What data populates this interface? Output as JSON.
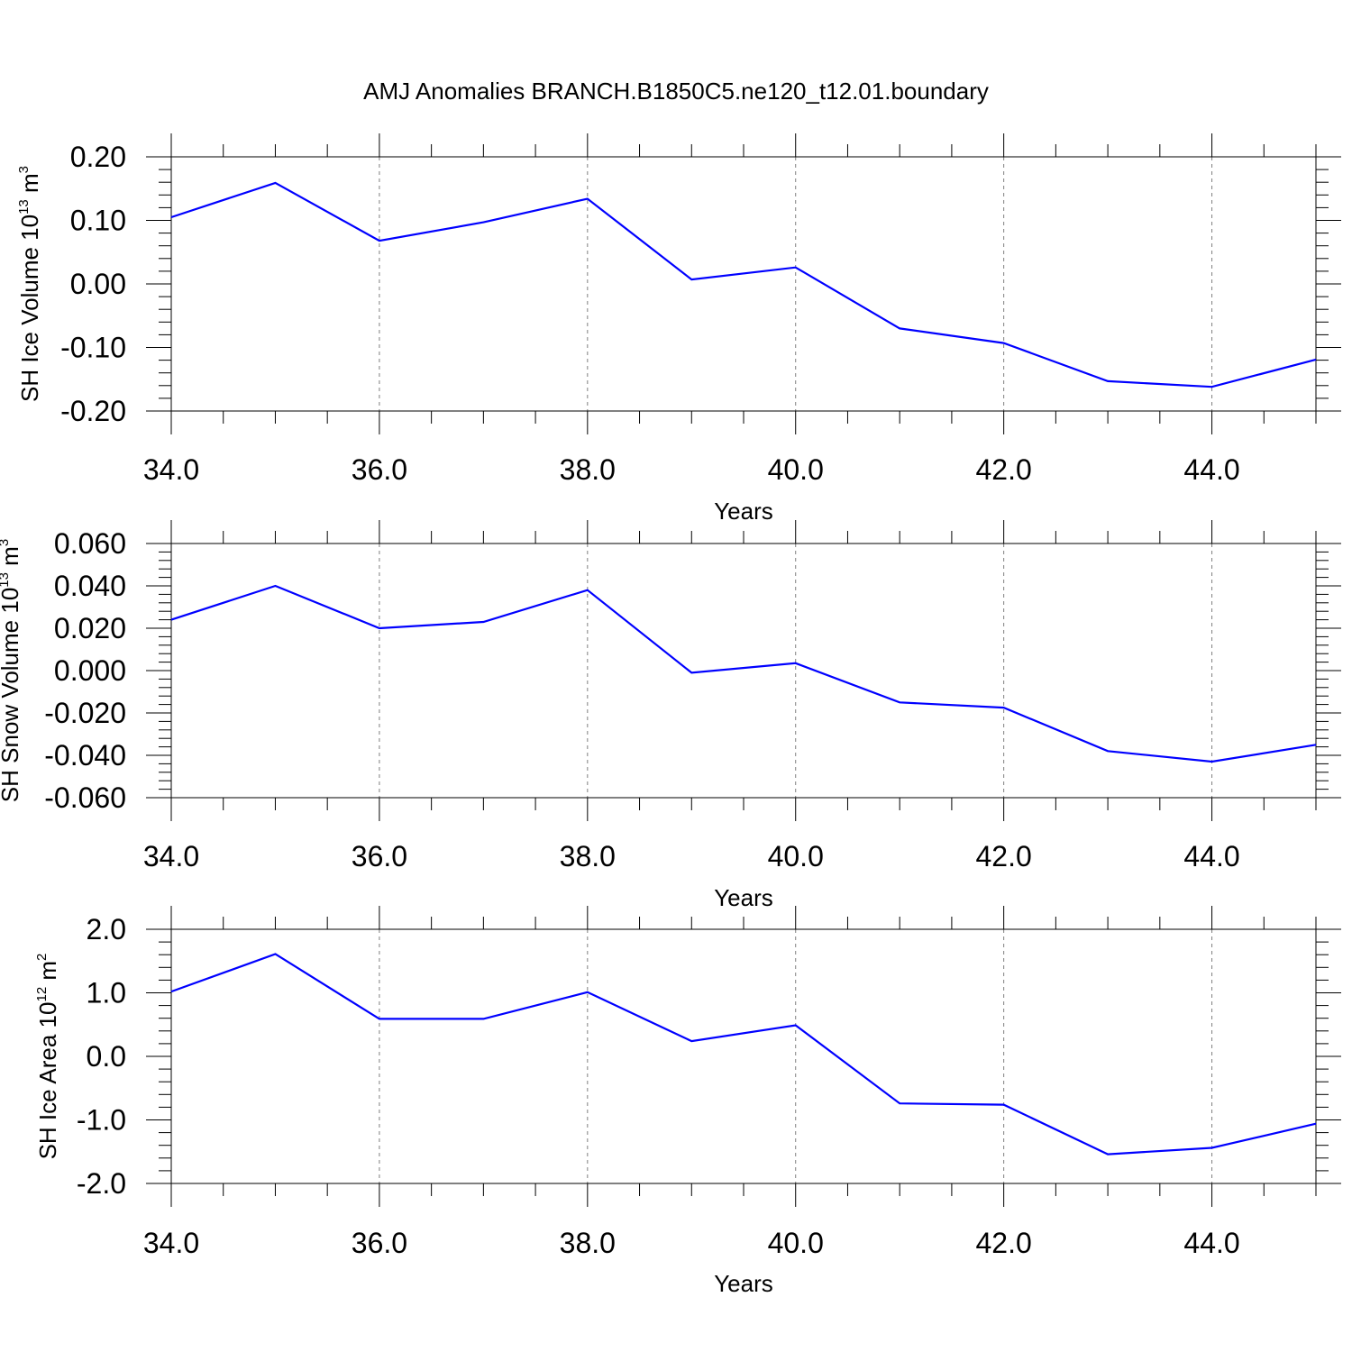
{
  "title": "AMJ Anomalies BRANCH.B1850C5.ne120_t12.01.boundary",
  "line_color": "#0000ff",
  "chart_data": [
    {
      "type": "line",
      "x": [
        34,
        35,
        36,
        37,
        38,
        39,
        40,
        41,
        42,
        43,
        44,
        45
      ],
      "values": [
        0.105,
        0.159,
        0.068,
        0.097,
        0.134,
        0.007,
        0.026,
        -0.07,
        -0.093,
        -0.153,
        -0.162,
        -0.119
      ],
      "xlim": [
        34,
        45
      ],
      "ylim": [
        -0.2,
        0.2
      ],
      "xticks": [
        "34.0",
        "36.0",
        "38.0",
        "40.0",
        "42.0",
        "44.0"
      ],
      "yticks": [
        "0.20",
        "0.10",
        "0.00",
        "-0.10",
        "-0.20"
      ],
      "xlabel": "Years",
      "ylabel": {
        "base": "SH Ice Volume 10",
        "exp": "13",
        "unit": " m",
        "unit_exp": "3"
      },
      "grid": "vertical dashed"
    },
    {
      "type": "line",
      "x": [
        34,
        35,
        36,
        37,
        38,
        39,
        40,
        41,
        42,
        43,
        44,
        45
      ],
      "values": [
        0.024,
        0.04,
        0.02,
        0.023,
        0.038,
        -0.001,
        0.0035,
        -0.015,
        -0.0175,
        -0.038,
        -0.043,
        -0.035
      ],
      "xlim": [
        34,
        45
      ],
      "ylim": [
        -0.06,
        0.06
      ],
      "xticks": [
        "34.0",
        "36.0",
        "38.0",
        "40.0",
        "42.0",
        "44.0"
      ],
      "yticks": [
        "0.060",
        "0.040",
        "0.020",
        "0.000",
        "-0.020",
        "-0.040",
        "-0.060"
      ],
      "xlabel": "Years",
      "ylabel": {
        "base": "SH Snow Volume 10",
        "exp": "13",
        "unit": " m",
        "unit_exp": "3"
      },
      "grid": "vertical dashed"
    },
    {
      "type": "line",
      "x": [
        34,
        35,
        36,
        37,
        38,
        39,
        40,
        41,
        42,
        43,
        44,
        45
      ],
      "values": [
        1.02,
        1.61,
        0.59,
        0.59,
        1.01,
        0.24,
        0.49,
        -0.74,
        -0.76,
        -1.54,
        -1.44,
        -1.06
      ],
      "xlim": [
        34,
        45
      ],
      "ylim": [
        -2.0,
        2.0
      ],
      "xticks": [
        "34.0",
        "36.0",
        "38.0",
        "40.0",
        "42.0",
        "44.0"
      ],
      "yticks": [
        "2.0",
        "1.0",
        "0.0",
        "-1.0",
        "-2.0"
      ],
      "xlabel": "Years",
      "ylabel": {
        "base": "SH Ice Area 10",
        "exp": "12",
        "unit": " m",
        "unit_exp": "2"
      },
      "grid": "vertical dashed"
    }
  ]
}
